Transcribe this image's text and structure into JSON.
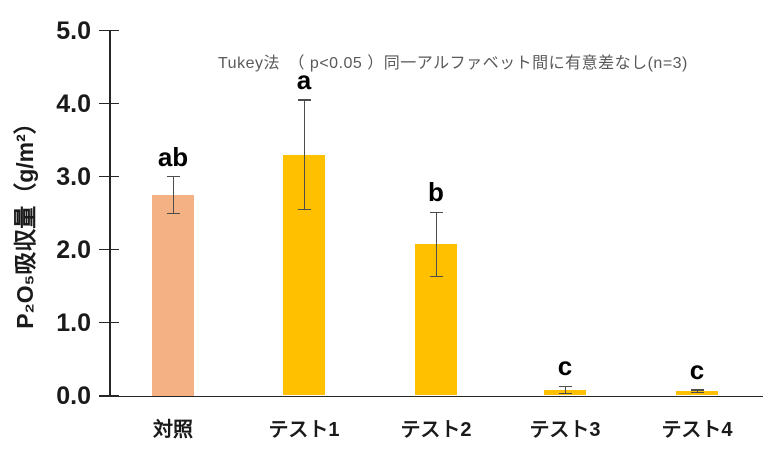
{
  "chart_data": {
    "type": "bar",
    "title": "",
    "ylabel": "P₂O₅吸収量（g/m²）",
    "xlabel": "",
    "annotation": "Tukey法　（ p<0.05 ）同一アルファベット間に有意差なし(n=3)",
    "categories": [
      "対照",
      "テスト1",
      "テスト2",
      "テスト3",
      "テスト4"
    ],
    "values": [
      2.75,
      3.3,
      2.07,
      0.08,
      0.06
    ],
    "error_bars": [
      0.25,
      0.75,
      0.44,
      0.05,
      0.02
    ],
    "sig_letters": [
      "ab",
      "a",
      "b",
      "c",
      "c"
    ],
    "bar_colors": [
      "#F4B183",
      "#FFC000",
      "#FFC000",
      "#FFC000",
      "#FFC000"
    ],
    "ylim": [
      0.0,
      5.0
    ],
    "yticks": [
      "0.0",
      "1.0",
      "2.0",
      "3.0",
      "4.0",
      "5.0"
    ],
    "grid": false,
    "legend": "none"
  },
  "colors": {
    "axis": "#262626",
    "error_bar": "#4d4d4d",
    "letter_text": "#000000",
    "tick_label_text": "#1a1a1a",
    "x_label_text": "#1a1a1a",
    "annotation_text": "#595959"
  }
}
